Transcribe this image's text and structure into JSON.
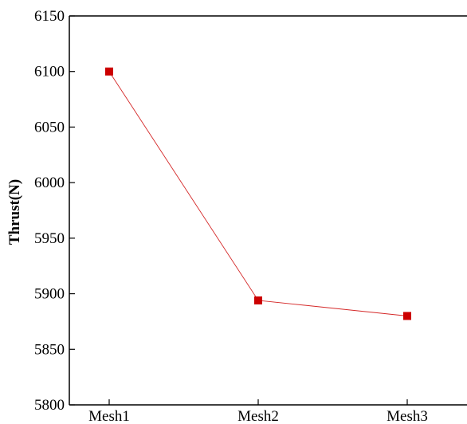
{
  "chart_data": {
    "type": "line",
    "title": "",
    "xlabel": "",
    "ylabel": "Thrust(N)",
    "categories": [
      "Mesh1",
      "Mesh2",
      "Mesh3"
    ],
    "series": [
      {
        "values": [
          6100,
          5894,
          5880
        ],
        "color": "#cc0000",
        "marker": "square"
      }
    ],
    "ylim": [
      5800,
      6150
    ],
    "yticks": [
      "5800",
      "5850",
      "5900",
      "5950",
      "6000",
      "6050",
      "6100",
      "6150"
    ],
    "grid": false
  }
}
